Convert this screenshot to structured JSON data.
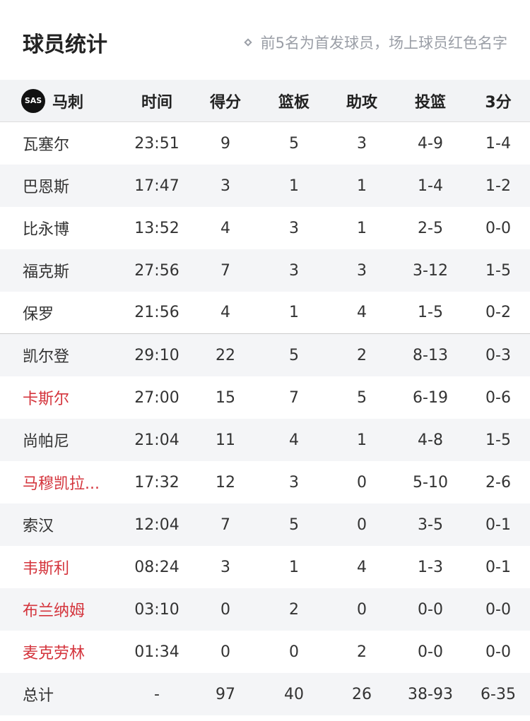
{
  "title": "球员统计",
  "note": "前5名为首发球员，场上球员红色名字",
  "colors": {
    "on_court": "#d4343c",
    "stripe": "#f4f5f7"
  },
  "team": {
    "name": "马刺",
    "logo_text": "SAS"
  },
  "columns": [
    "时间",
    "得分",
    "篮板",
    "助攻",
    "投篮",
    "3分"
  ],
  "players": [
    {
      "name": "瓦塞尔",
      "on_court": false,
      "stats": [
        "23:51",
        "9",
        "5",
        "3",
        "4-9",
        "1-4"
      ]
    },
    {
      "name": "巴恩斯",
      "on_court": false,
      "stats": [
        "17:47",
        "3",
        "1",
        "1",
        "1-4",
        "1-2"
      ]
    },
    {
      "name": "比永博",
      "on_court": false,
      "stats": [
        "13:52",
        "4",
        "3",
        "1",
        "2-5",
        "0-0"
      ]
    },
    {
      "name": "福克斯",
      "on_court": false,
      "stats": [
        "27:56",
        "7",
        "3",
        "3",
        "3-12",
        "1-5"
      ]
    },
    {
      "name": "保罗",
      "on_court": false,
      "stats": [
        "21:56",
        "4",
        "1",
        "4",
        "1-5",
        "0-2"
      ]
    },
    {
      "name": "凯尔登",
      "on_court": false,
      "stats": [
        "29:10",
        "22",
        "5",
        "2",
        "8-13",
        "0-3"
      ]
    },
    {
      "name": "卡斯尔",
      "on_court": true,
      "stats": [
        "27:00",
        "15",
        "7",
        "5",
        "6-19",
        "0-6"
      ]
    },
    {
      "name": "尚帕尼",
      "on_court": false,
      "stats": [
        "21:04",
        "11",
        "4",
        "1",
        "4-8",
        "1-5"
      ]
    },
    {
      "name": "马穆凯拉...",
      "on_court": true,
      "stats": [
        "17:32",
        "12",
        "3",
        "0",
        "5-10",
        "2-6"
      ]
    },
    {
      "name": "索汉",
      "on_court": false,
      "stats": [
        "12:04",
        "7",
        "5",
        "0",
        "3-5",
        "0-1"
      ]
    },
    {
      "name": "韦斯利",
      "on_court": true,
      "stats": [
        "08:24",
        "3",
        "1",
        "4",
        "1-3",
        "0-1"
      ]
    },
    {
      "name": "布兰纳姆",
      "on_court": true,
      "stats": [
        "03:10",
        "0",
        "2",
        "0",
        "0-0",
        "0-0"
      ]
    },
    {
      "name": "麦克劳林",
      "on_court": true,
      "stats": [
        "01:34",
        "0",
        "0",
        "2",
        "0-0",
        "0-0"
      ]
    }
  ],
  "total": {
    "name": "总计",
    "stats": [
      "-",
      "97",
      "40",
      "26",
      "38-93",
      "6-35"
    ]
  }
}
